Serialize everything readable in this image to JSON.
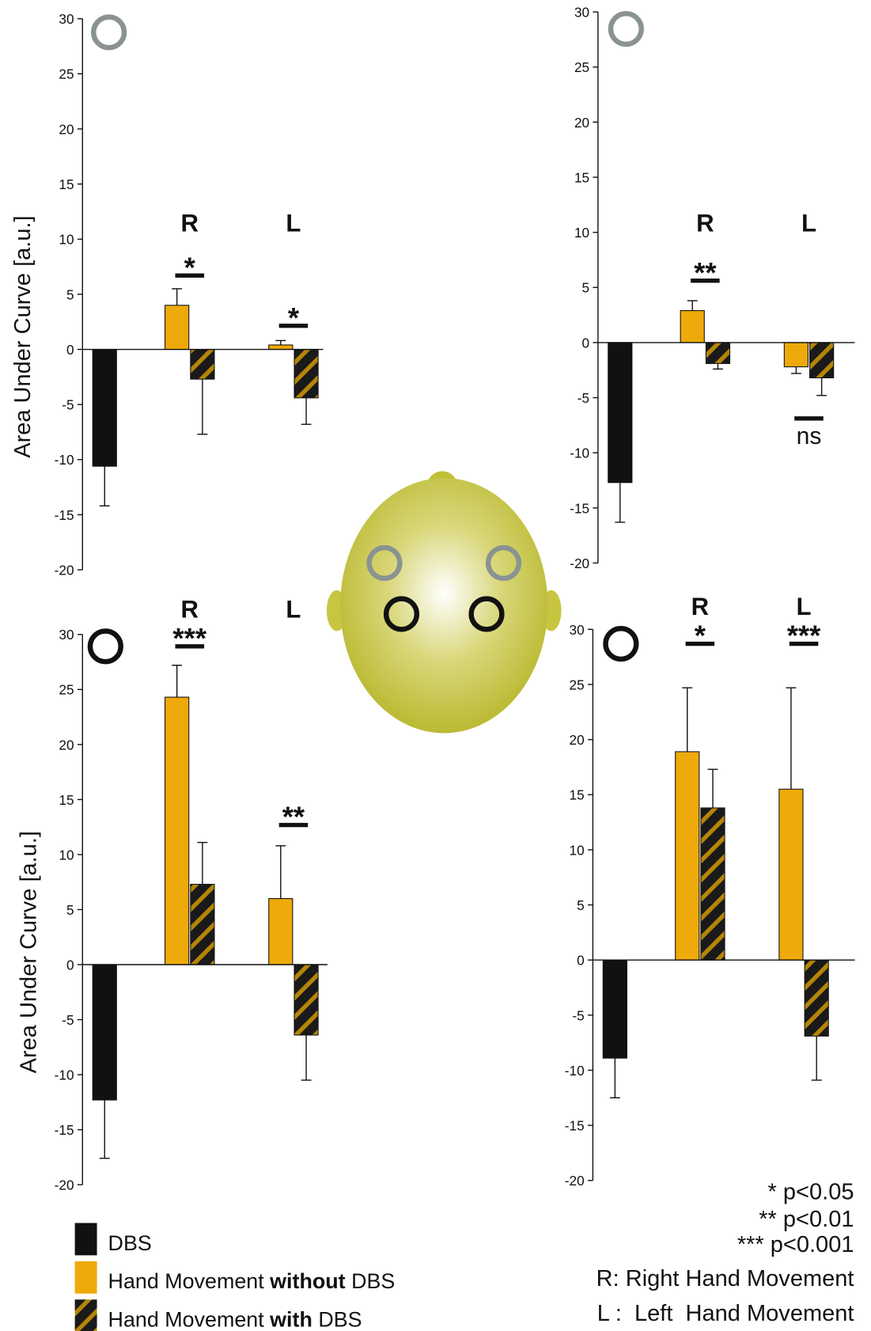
{
  "chart_data": [
    {
      "type": "bar",
      "ylabel": "Area Under Curve [a.u.]",
      "categories": [
        null,
        "R",
        "L"
      ],
      "ylim": [
        -20,
        30
      ],
      "yticks": [
        -20,
        -15,
        -10,
        -5,
        0,
        5,
        10,
        15,
        20,
        25,
        30
      ],
      "significance": [
        null,
        "*",
        "*"
      ],
      "series": [
        {
          "name": "DBS",
          "color": "#111111",
          "values": [
            -10.6,
            null,
            null
          ],
          "errors": [
            3.6,
            null,
            null
          ]
        },
        {
          "name": "Hand Movement without DBS",
          "color": "#eeaa0a",
          "values": [
            null,
            4.0,
            0.4
          ],
          "errors": [
            null,
            1.5,
            0.4
          ]
        },
        {
          "name": "Hand Movement with DBS",
          "color": "#1a1a1a",
          "hatch_color": "#e8a800",
          "values": [
            null,
            -2.7,
            -4.4
          ],
          "errors": [
            null,
            5.0,
            2.4
          ]
        }
      ]
    },
    {
      "type": "bar",
      "categories": [
        null,
        "R",
        "L"
      ],
      "ylim": [
        -20,
        30
      ],
      "yticks": [
        -20,
        -15,
        -10,
        -5,
        0,
        5,
        10,
        15,
        20,
        25,
        30
      ],
      "significance": [
        null,
        "**",
        "ns"
      ],
      "series": [
        {
          "name": "DBS",
          "color": "#111111",
          "values": [
            -12.7,
            null,
            null
          ],
          "errors": [
            3.6,
            null,
            null
          ]
        },
        {
          "name": "Hand Movement without DBS",
          "color": "#eeaa0a",
          "values": [
            null,
            2.9,
            -2.2
          ],
          "errors": [
            null,
            0.9,
            0.6
          ]
        },
        {
          "name": "Hand Movement with DBS",
          "color": "#1a1a1a",
          "hatch_color": "#e8a800",
          "values": [
            null,
            -1.9,
            -3.2
          ],
          "errors": [
            null,
            0.5,
            1.6
          ]
        }
      ]
    },
    {
      "type": "bar",
      "ylabel": "Area Under Curve [a.u.]",
      "categories": [
        null,
        "R",
        "L"
      ],
      "ylim": [
        -20,
        30
      ],
      "yticks": [
        -20,
        -15,
        -10,
        -5,
        0,
        5,
        10,
        15,
        20,
        25,
        30
      ],
      "significance": [
        null,
        "***",
        "**"
      ],
      "series": [
        {
          "name": "DBS",
          "color": "#111111",
          "values": [
            -12.3,
            null,
            null
          ],
          "errors": [
            5.3,
            null,
            null
          ]
        },
        {
          "name": "Hand Movement without DBS",
          "color": "#eeaa0a",
          "values": [
            null,
            24.3,
            6.0
          ],
          "errors": [
            null,
            2.9,
            4.8
          ]
        },
        {
          "name": "Hand Movement with DBS",
          "color": "#1a1a1a",
          "hatch_color": "#e8a800",
          "values": [
            null,
            7.3,
            -6.4
          ],
          "errors": [
            null,
            3.8,
            4.1
          ]
        }
      ]
    },
    {
      "type": "bar",
      "categories": [
        null,
        "R",
        "L"
      ],
      "ylim": [
        -20,
        30
      ],
      "yticks": [
        -20,
        -15,
        -10,
        -5,
        0,
        5,
        10,
        15,
        20,
        25,
        30
      ],
      "significance": [
        null,
        "*",
        "***"
      ],
      "series": [
        {
          "name": "DBS",
          "color": "#111111",
          "values": [
            -8.9,
            null,
            null
          ],
          "errors": [
            3.6,
            null,
            null
          ]
        },
        {
          "name": "Hand Movement without DBS",
          "color": "#eeaa0a",
          "values": [
            null,
            18.9,
            15.5
          ],
          "errors": [
            null,
            5.8,
            9.2
          ]
        },
        {
          "name": "Hand Movement with DBS",
          "color": "#1a1a1a",
          "hatch_color": "#e8a800",
          "values": [
            null,
            13.8,
            -6.9
          ],
          "errors": [
            null,
            3.5,
            4.0
          ]
        }
      ]
    }
  ],
  "notes": [
    "* p<0.05",
    "** p<0.01",
    "*** p<0.001",
    "R: Right Hand Movement",
    "L :  Left  Hand Movement"
  ]
}
